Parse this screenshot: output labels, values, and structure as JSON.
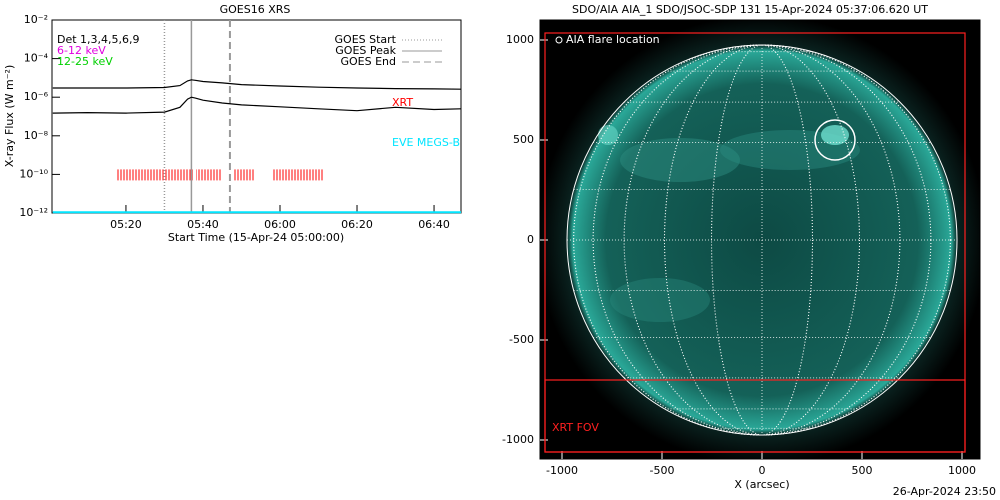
{
  "chart_data": [
    {
      "type": "line",
      "title": "GOES16 XRS",
      "log_y": true,
      "xlabel": "Start Time (15-Apr-24 05:00:00)",
      "ylabel": "X-ray Flux (W m⁻²)",
      "xlim": [
        0.8,
        107
      ],
      "ylim": [
        1e-12,
        0.01
      ],
      "xticks": [
        {
          "value": 20,
          "label": "05:20"
        },
        {
          "value": 40,
          "label": "05:40"
        },
        {
          "value": 60,
          "label": "06:00"
        },
        {
          "value": 80,
          "label": "06:20"
        },
        {
          "value": 100,
          "label": "06:40"
        }
      ],
      "yticks": [
        {
          "value": 1e-12,
          "label": "10⁻¹²"
        },
        {
          "value": 1e-10,
          "label": "10⁻¹⁰"
        },
        {
          "value": 1e-08,
          "label": "10⁻⁸"
        },
        {
          "value": 1e-06,
          "label": "10⁻⁶"
        },
        {
          "value": 0.0001,
          "label": "10⁻⁴"
        },
        {
          "value": 0.01,
          "label": "10⁻²"
        }
      ],
      "x": [
        1,
        10,
        20,
        30,
        34,
        36,
        37,
        38,
        40,
        45,
        50,
        60,
        70,
        80,
        90,
        100,
        107
      ],
      "series": [
        {
          "color": "#000000",
          "values": [
            3e-06,
            3e-06,
            3e-06,
            3.2e-06,
            4e-06,
            7e-06,
            8e-06,
            7.5e-06,
            6.5e-06,
            5.5e-06,
            4.5e-06,
            3.8e-06,
            3.3e-06,
            3e-06,
            2.8e-06,
            2.7e-06,
            2.6e-06
          ]
        },
        {
          "color": "#000000",
          "values": [
            1.5e-07,
            1.6e-07,
            1.5e-07,
            1.7e-07,
            3e-07,
            8e-07,
            1e-06,
            9e-07,
            7e-07,
            5e-07,
            4e-07,
            3.2e-07,
            2.5e-07,
            2e-07,
            3e-07,
            2.3e-07,
            2.5e-07
          ]
        },
        {
          "color": "#00e5ff",
          "values": [
            1.1e-12,
            1.1e-12,
            1.1e-12,
            1.1e-12,
            1.1e-12,
            1.1e-12,
            1.1e-12,
            1.1e-12,
            1.1e-12,
            1.1e-12,
            1.1e-12,
            1.1e-12,
            1.1e-12,
            1.1e-12,
            1.1e-12,
            1.1e-12,
            1.1e-12
          ]
        }
      ],
      "legend_texts": [
        {
          "text": "Det 1,3,4,5,6,9",
          "color": "#000000"
        },
        {
          "text": "6-12 keV",
          "color": "#e000e0"
        },
        {
          "text": "12-25 keV",
          "color": "#00d000"
        }
      ],
      "markers": [
        {
          "label": "GOES Start",
          "x": 30,
          "style": "dotted"
        },
        {
          "label": "GOES Peak",
          "x": 37,
          "style": "solid"
        },
        {
          "label": "GOES End",
          "x": 47,
          "style": "dashed"
        }
      ],
      "xrt_label": "XRT",
      "xrt_color": "#ff0000",
      "xrt_spans": [
        [
          17.7,
          37.4
        ],
        [
          38.2,
          45
        ],
        [
          47.8,
          53.2
        ],
        [
          57.9,
          71.2
        ]
      ],
      "xrt_level": 1e-10,
      "eve_label": "EVE MEGS-B"
    },
    {
      "type": "image",
      "title": "SDO/AIA AIA_1 SDO/JSOC-SDP 131 15-Apr-2024 05:37:06.620 UT",
      "xlabel": "X (arcsec)",
      "xlim": [
        -1110,
        1090
      ],
      "ylim": [
        -1095,
        1100
      ],
      "xticks": [
        -1000,
        -500,
        0,
        500,
        1000
      ],
      "yticks": [
        -1000,
        -500,
        0,
        500,
        1000
      ],
      "flare_label": "AIA flare location",
      "flare": {
        "x": 365,
        "y": 500,
        "r": 100
      },
      "fov_label": "XRT FOV",
      "fov_color": "#ff2020",
      "fov_boxes": [
        [
          -1085,
          1015,
          -1060,
          1035
        ],
        [
          -1085,
          1015,
          -1060,
          -700
        ]
      ]
    }
  ],
  "timestamp": "26-Apr-2024 23:50"
}
